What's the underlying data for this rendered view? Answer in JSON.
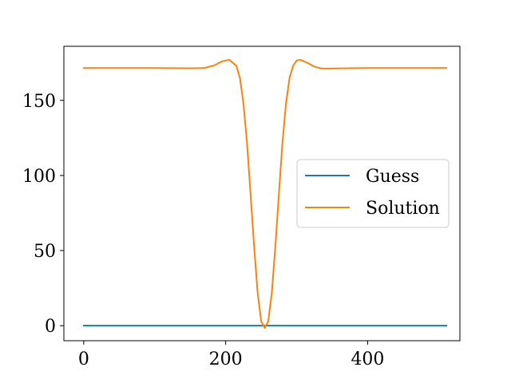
{
  "chart_data": {
    "type": "line",
    "title": "",
    "xlabel": "",
    "ylabel": "",
    "xlim": [
      -28,
      530
    ],
    "ylim": [
      -10,
      186
    ],
    "xticks": [
      0,
      200,
      400
    ],
    "yticks": [
      0,
      50,
      100,
      150
    ],
    "xtick_labels": [
      "0",
      "200",
      "400"
    ],
    "ytick_labels": [
      "0",
      "50",
      "100",
      "150"
    ],
    "grid": false,
    "legend": {
      "position": "center-right"
    },
    "series": [
      {
        "name": "Guess",
        "color": "#1f77b4",
        "x": [
          0,
          100,
          200,
          300,
          400,
          511
        ],
        "y": [
          0,
          0,
          0,
          0,
          0,
          0
        ]
      },
      {
        "name": "Solution",
        "color": "#ff7f0e",
        "x": [
          0,
          50,
          100,
          150,
          170,
          185,
          195,
          205,
          215,
          220,
          225,
          230,
          235,
          240,
          245,
          250,
          255,
          260,
          265,
          270,
          275,
          280,
          285,
          290,
          295,
          300,
          305,
          315,
          325,
          335,
          345,
          400,
          450,
          511
        ],
        "y": [
          171.5,
          171.5,
          171.5,
          171.3,
          171.5,
          173.5,
          176.0,
          177.0,
          173.0,
          165.0,
          148.0,
          122.0,
          88.0,
          53.0,
          22.0,
          3.0,
          -1.5,
          3.0,
          22.0,
          53.0,
          88.0,
          122.0,
          148.0,
          165.0,
          173.0,
          176.5,
          177.0,
          175.0,
          172.5,
          171.2,
          171.2,
          171.5,
          171.5,
          171.5
        ]
      }
    ]
  }
}
